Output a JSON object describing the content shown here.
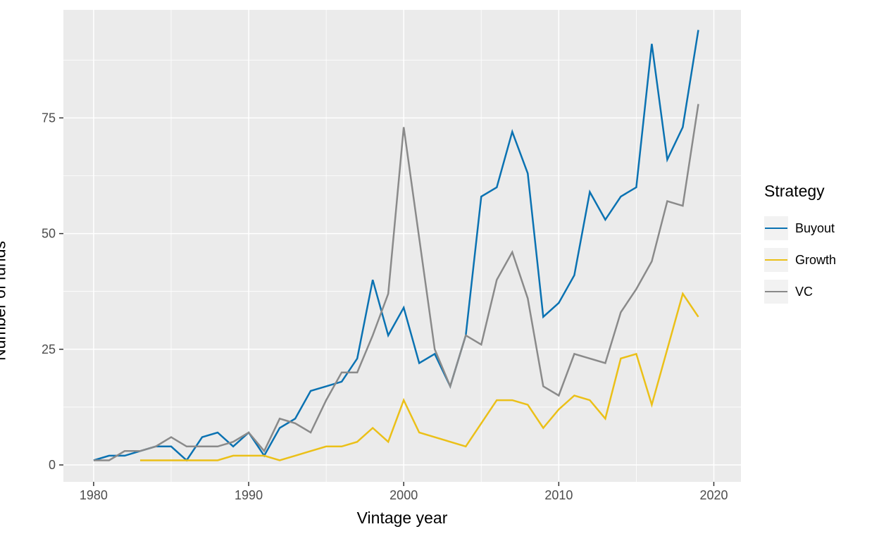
{
  "figure": {
    "background": "#ffffff",
    "panel_background": "#ebebeb",
    "grid_color": "#ffffff",
    "tick_color": "#333333",
    "tick_label_color": "#4d4d4d",
    "axis_title_color": "#000000",
    "legend_key_background": "#f2f2f2"
  },
  "chart_data": {
    "type": "line",
    "title": "",
    "xlabel": "Vintage year",
    "ylabel": "Number of funds",
    "legend_title": "Strategy",
    "legend_position": "right",
    "grid": true,
    "xlim": [
      1978.05,
      2021.75
    ],
    "ylim": [
      -3.65,
      98.35
    ],
    "x_ticks": [
      1980,
      1990,
      2000,
      2010,
      2020
    ],
    "x_minor_ticks": [
      1985,
      1995,
      2005,
      2015
    ],
    "y_ticks": [
      0,
      25,
      50,
      75
    ],
    "y_minor_ticks": [
      12.5,
      37.5,
      62.5,
      87.5
    ],
    "years": [
      1980,
      1981,
      1982,
      1983,
      1984,
      1985,
      1986,
      1987,
      1988,
      1989,
      1990,
      1991,
      1992,
      1993,
      1994,
      1995,
      1996,
      1997,
      1998,
      1999,
      2000,
      2001,
      2002,
      2003,
      2004,
      2005,
      2006,
      2007,
      2008,
      2009,
      2010,
      2011,
      2012,
      2013,
      2014,
      2015,
      2016,
      2017,
      2018,
      2019
    ],
    "series": [
      {
        "name": "Buyout",
        "color": "#0a72b2",
        "values": [
          1,
          2,
          2,
          3,
          4,
          4,
          1,
          6,
          7,
          4,
          7,
          2,
          8,
          10,
          16,
          17,
          18,
          23,
          40,
          28,
          34,
          22,
          24,
          17,
          28,
          58,
          60,
          72,
          63,
          32,
          35,
          41,
          59,
          53,
          58,
          60,
          91,
          66,
          73,
          94
        ]
      },
      {
        "name": "Growth",
        "color": "#ebc018",
        "values": [
          null,
          null,
          null,
          1,
          1,
          1,
          1,
          1,
          1,
          2,
          2,
          2,
          1,
          2,
          3,
          4,
          4,
          5,
          8,
          5,
          14,
          7,
          6,
          5,
          4,
          9,
          14,
          14,
          13,
          8,
          12,
          15,
          14,
          10,
          23,
          24,
          13,
          25,
          37,
          32
        ]
      },
      {
        "name": "VC",
        "color": "#8a8a8a",
        "values": [
          1,
          1,
          3,
          3,
          4,
          6,
          4,
          4,
          4,
          5,
          7,
          3,
          10,
          9,
          7,
          14,
          20,
          20,
          28,
          37,
          73,
          49,
          25,
          17,
          28,
          26,
          40,
          46,
          36,
          17,
          15,
          24,
          23,
          22,
          33,
          38,
          44,
          57,
          56,
          78
        ]
      }
    ]
  }
}
